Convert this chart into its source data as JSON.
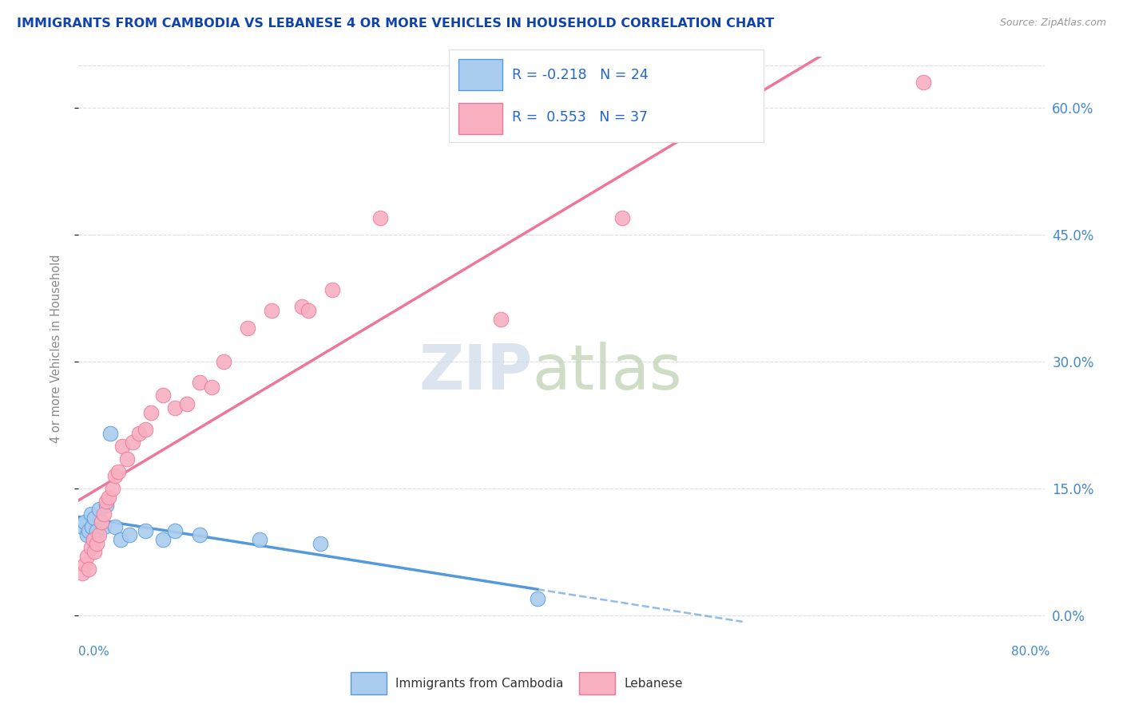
{
  "title": "IMMIGRANTS FROM CAMBODIA VS LEBANESE 4 OR MORE VEHICLES IN HOUSEHOLD CORRELATION CHART",
  "source": "Source: ZipAtlas.com",
  "ylabel": "4 or more Vehicles in Household",
  "yticks": [
    "0.0%",
    "15.0%",
    "30.0%",
    "45.0%",
    "60.0%"
  ],
  "ytick_vals": [
    0.0,
    15.0,
    30.0,
    45.0,
    60.0
  ],
  "xmin": 0.0,
  "xmax": 80.0,
  "ymin": -3.0,
  "ymax": 66.0,
  "cambodia_R": -0.218,
  "cambodia_N": 24,
  "lebanese_R": 0.553,
  "lebanese_N": 37,
  "cambodia_color": "#aaccee",
  "lebanese_color": "#f8b0c0",
  "cambodia_line_color": "#5599dd",
  "lebanese_line_color": "#ee7799",
  "title_color": "#1144aa",
  "source_color": "#999999",
  "axis_label_color": "#4488cc",
  "ylabel_color": "#888888",
  "legend_text_color": "#2266cc",
  "watermark_zip_color": "#c5d5e5",
  "watermark_atlas_color": "#b0c5a0",
  "cambodia_x": [
    0.3,
    0.5,
    0.7,
    0.8,
    1.0,
    1.1,
    1.2,
    1.3,
    1.5,
    1.7,
    1.9,
    2.1,
    2.3,
    2.6,
    3.0,
    3.5,
    4.2,
    5.5,
    7.0,
    8.0,
    10.0,
    15.0,
    20.0,
    38.0
  ],
  "cambodia_y": [
    10.5,
    11.0,
    9.5,
    10.0,
    12.0,
    10.5,
    9.0,
    11.5,
    10.0,
    12.5,
    11.0,
    10.5,
    13.0,
    21.5,
    10.5,
    9.0,
    9.5,
    10.0,
    9.0,
    10.0,
    9.5,
    9.0,
    8.5,
    2.0
  ],
  "lebanese_x": [
    0.3,
    0.5,
    0.7,
    0.8,
    1.0,
    1.2,
    1.3,
    1.5,
    1.7,
    1.9,
    2.1,
    2.3,
    2.5,
    2.8,
    3.0,
    3.3,
    3.6,
    4.0,
    4.5,
    5.0,
    5.5,
    6.0,
    7.0,
    8.0,
    9.0,
    10.0,
    11.0,
    12.0,
    14.0,
    16.0,
    18.5,
    19.0,
    21.0,
    25.0,
    35.0,
    45.0,
    70.0
  ],
  "lebanese_y": [
    5.0,
    6.0,
    7.0,
    5.5,
    8.0,
    9.0,
    7.5,
    8.5,
    9.5,
    11.0,
    12.0,
    13.5,
    14.0,
    15.0,
    16.5,
    17.0,
    20.0,
    18.5,
    20.5,
    21.5,
    22.0,
    24.0,
    26.0,
    24.5,
    25.0,
    27.5,
    27.0,
    30.0,
    34.0,
    36.0,
    36.5,
    36.0,
    38.5,
    47.0,
    35.0,
    47.0,
    63.0
  ],
  "cam_line_x0": 0.0,
  "cam_line_x1": 38.0,
  "cam_line_x_dash_end": 55.0,
  "leb_line_x0": 0.0,
  "leb_line_x1": 80.0,
  "grid_color": "#dddddd",
  "grid_style": "--",
  "border_color": "#dddddd"
}
